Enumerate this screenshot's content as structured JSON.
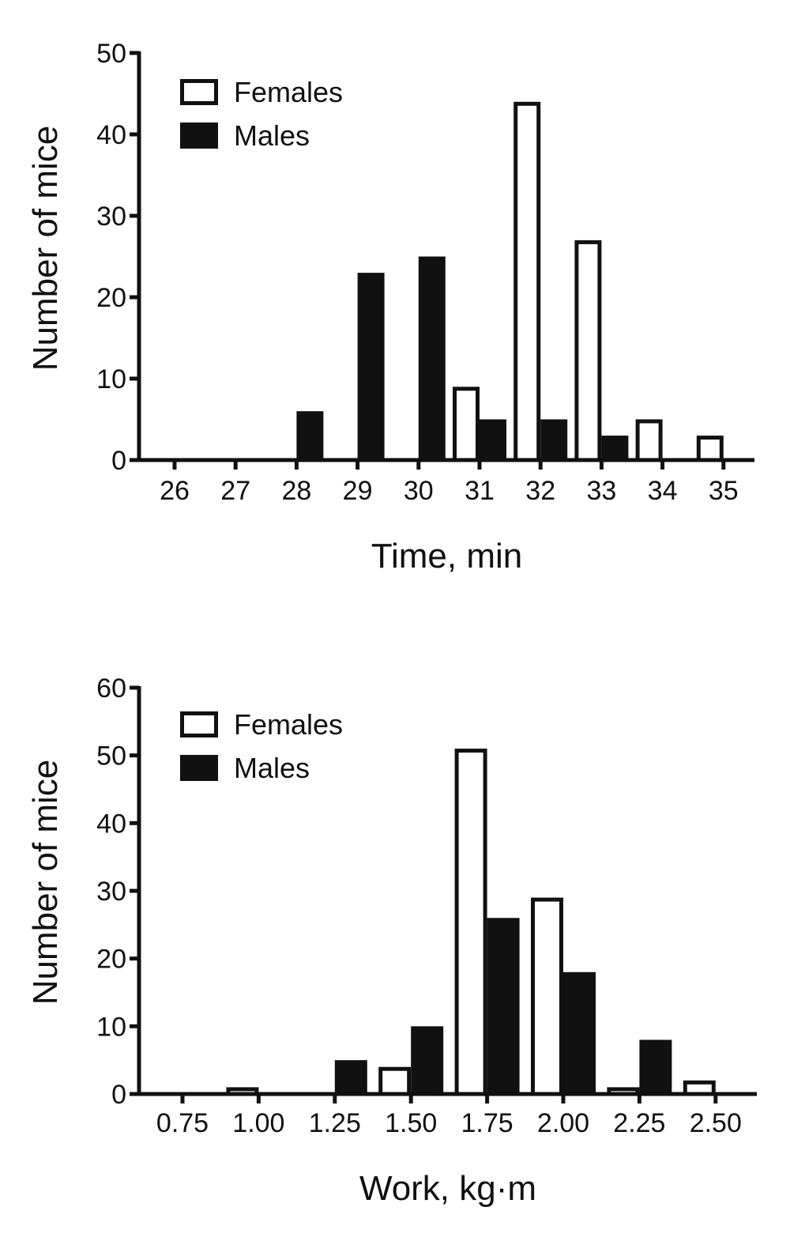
{
  "chart_data": [
    {
      "type": "bar",
      "categories": [
        "26",
        "27",
        "28",
        "29",
        "30",
        "31",
        "32",
        "33",
        "34",
        "35"
      ],
      "series": [
        {
          "name": "Females",
          "values": [
            0,
            0,
            0,
            0,
            0,
            9,
            44,
            27,
            5,
            3
          ],
          "fill": "#ffffff"
        },
        {
          "name": "Males",
          "values": [
            0,
            0,
            6,
            23,
            25,
            5,
            5,
            3,
            0,
            0
          ],
          "fill": "#111111"
        }
      ],
      "xlabel": "Time, min",
      "ylabel": "Number of mice",
      "ylim": [
        0,
        50
      ],
      "yticks": [
        0,
        10,
        20,
        30,
        40,
        50
      ],
      "legend": "top-left"
    },
    {
      "type": "bar",
      "categories": [
        "0.75",
        "1.00",
        "1.25",
        "1.50",
        "1.75",
        "2.00",
        "2.25",
        "2.50"
      ],
      "series": [
        {
          "name": "Females",
          "values": [
            0,
            1,
            0,
            4,
            51,
            29,
            1,
            2
          ],
          "fill": "#ffffff"
        },
        {
          "name": "Males",
          "values": [
            0,
            0,
            5,
            10,
            26,
            18,
            8,
            0
          ],
          "fill": "#111111"
        }
      ],
      "xlabel": "Work, kg·m",
      "ylabel": "Number of mice",
      "ylim": [
        0,
        60
      ],
      "yticks": [
        0,
        10,
        20,
        30,
        40,
        50,
        60
      ],
      "legend": "top-left"
    }
  ]
}
